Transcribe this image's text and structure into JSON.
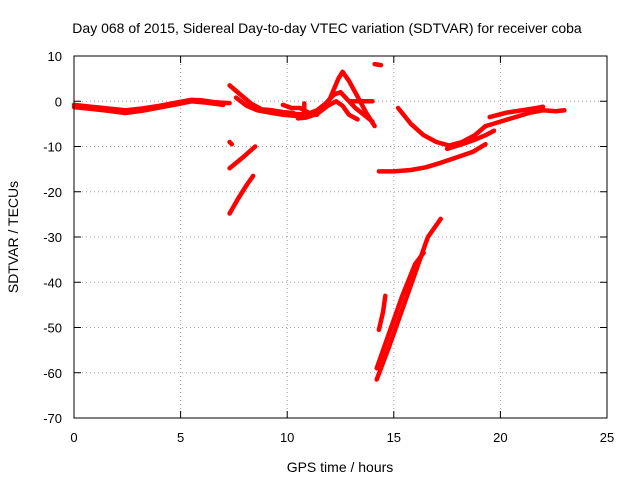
{
  "chart_data": {
    "type": "scatter",
    "title": "Day 068 of 2015, Sidereal Day-to-day VTEC variation (SDTVAR) for receiver coba",
    "xlabel": "GPS time / hours",
    "ylabel": "SDTVAR / TECUs",
    "xlim": [
      0,
      25
    ],
    "ylim": [
      -70,
      10
    ],
    "xticks": [
      0,
      5,
      10,
      15,
      20,
      25
    ],
    "yticks": [
      10,
      0,
      -10,
      -20,
      -30,
      -40,
      -50,
      -60,
      -70
    ],
    "grid": true,
    "marker_color": "#ff0000",
    "series": [
      {
        "values": [
          [
            0.0,
            -0.8
          ],
          [
            0.8,
            -1.2
          ],
          [
            1.6,
            -1.6
          ],
          [
            2.4,
            -2.0
          ],
          [
            3.2,
            -1.6
          ],
          [
            4.0,
            -1.0
          ],
          [
            4.8,
            -0.3
          ],
          [
            5.5,
            0.3
          ],
          [
            6.0,
            0.2
          ],
          [
            6.6,
            -0.2
          ],
          [
            7.3,
            -0.4
          ]
        ]
      },
      {
        "values": [
          [
            0.0,
            -1.3
          ],
          [
            0.8,
            -1.7
          ],
          [
            1.6,
            -2.1
          ],
          [
            2.4,
            -2.6
          ],
          [
            3.2,
            -2.1
          ],
          [
            4.0,
            -1.4
          ],
          [
            4.8,
            -0.7
          ],
          [
            5.5,
            0.0
          ],
          [
            6.2,
            -0.3
          ],
          [
            7.0,
            -0.8
          ]
        ]
      },
      {
        "values": [
          [
            7.3,
            3.5
          ],
          [
            7.8,
            1.5
          ],
          [
            8.3,
            -0.5
          ],
          [
            8.8,
            -1.8
          ],
          [
            9.3,
            -2.0
          ],
          [
            9.8,
            -2.4
          ],
          [
            10.3,
            -2.6
          ]
        ]
      },
      {
        "values": [
          [
            7.6,
            0.8
          ],
          [
            8.1,
            -1.0
          ],
          [
            8.6,
            -2.0
          ],
          [
            9.2,
            -2.5
          ],
          [
            9.8,
            -3.0
          ],
          [
            10.6,
            -3.3
          ],
          [
            11.1,
            -3.0
          ],
          [
            11.6,
            -2.0
          ],
          [
            12.0,
            0.5
          ],
          [
            12.4,
            5.0
          ],
          [
            12.6,
            6.5
          ],
          [
            12.9,
            4.5
          ],
          [
            13.3,
            1.0
          ],
          [
            13.7,
            -2.5
          ],
          [
            14.1,
            -5.5
          ]
        ]
      },
      {
        "values": [
          [
            8.5,
            -1.8
          ],
          [
            9.3,
            -2.3
          ],
          [
            10.1,
            -2.8
          ],
          [
            10.9,
            -2.9
          ],
          [
            11.4,
            -2.0
          ],
          [
            11.8,
            -0.5
          ],
          [
            12.2,
            1.5
          ],
          [
            12.5,
            2.0
          ],
          [
            12.8,
            0.5
          ],
          [
            13.2,
            -1.5
          ],
          [
            13.6,
            -3.0
          ],
          [
            14.0,
            -4.5
          ]
        ]
      },
      {
        "values": [
          [
            10.5,
            -3.8
          ],
          [
            10.9,
            -3.6
          ],
          [
            11.4,
            -2.8
          ],
          [
            11.9,
            -1.0
          ],
          [
            12.3,
            0.0
          ],
          [
            12.6,
            -1.0
          ],
          [
            12.9,
            -3.0
          ],
          [
            13.3,
            -4.0
          ]
        ]
      },
      {
        "values": [
          [
            9.8,
            -0.8
          ],
          [
            10.2,
            -1.5
          ],
          [
            10.6,
            -1.5
          ],
          [
            11.0,
            -2.5
          ],
          [
            11.4,
            -3.0
          ]
        ]
      },
      {
        "values": [
          [
            10.8,
            -0.5
          ],
          [
            10.8,
            -3.0
          ]
        ]
      },
      {
        "values": [
          [
            13.0,
            0.0
          ],
          [
            13.5,
            0.0
          ],
          [
            14.0,
            0.0
          ]
        ]
      },
      {
        "values": [
          [
            14.1,
            8.2
          ],
          [
            14.4,
            8.0
          ]
        ]
      },
      {
        "values": [
          [
            7.3,
            -9.0
          ],
          [
            7.4,
            -9.5
          ]
        ]
      },
      {
        "values": [
          [
            7.3,
            -14.8
          ],
          [
            7.9,
            -12.5
          ],
          [
            8.5,
            -10.0
          ]
        ]
      },
      {
        "values": [
          [
            7.3,
            -24.8
          ],
          [
            7.7,
            -21.5
          ],
          [
            8.1,
            -18.5
          ],
          [
            8.4,
            -16.5
          ]
        ]
      },
      {
        "values": [
          [
            14.3,
            -50.5
          ],
          [
            14.5,
            -46.5
          ],
          [
            14.6,
            -43.0
          ]
        ]
      },
      {
        "values": [
          [
            14.2,
            -61.5
          ],
          [
            14.8,
            -54.0
          ],
          [
            15.4,
            -46.0
          ],
          [
            16.0,
            -38.0
          ],
          [
            16.6,
            -30.0
          ],
          [
            17.2,
            -26.0
          ]
        ]
      },
      {
        "values": [
          [
            14.2,
            -59.0
          ],
          [
            14.8,
            -51.0
          ],
          [
            15.4,
            -43.0
          ],
          [
            16.0,
            -36.0
          ],
          [
            16.4,
            -33.5
          ]
        ]
      },
      {
        "values": [
          [
            14.3,
            -15.5
          ],
          [
            15.0,
            -15.5
          ],
          [
            15.8,
            -15.2
          ],
          [
            16.5,
            -14.6
          ],
          [
            17.2,
            -13.6
          ],
          [
            17.9,
            -12.5
          ],
          [
            18.7,
            -11.2
          ],
          [
            19.3,
            -9.5
          ]
        ]
      },
      {
        "values": [
          [
            15.2,
            -1.5
          ],
          [
            15.8,
            -5.0
          ],
          [
            16.4,
            -7.5
          ],
          [
            17.0,
            -9.0
          ],
          [
            17.6,
            -9.8
          ],
          [
            18.2,
            -9.0
          ],
          [
            18.8,
            -7.5
          ],
          [
            19.3,
            -5.5
          ]
        ]
      },
      {
        "values": [
          [
            17.5,
            -10.5
          ],
          [
            18.2,
            -9.5
          ],
          [
            18.8,
            -8.5
          ],
          [
            19.3,
            -7.5
          ],
          [
            19.7,
            -6.5
          ]
        ]
      },
      {
        "values": [
          [
            19.3,
            -5.5
          ],
          [
            20.0,
            -4.5
          ],
          [
            20.7,
            -3.5
          ],
          [
            21.4,
            -2.5
          ],
          [
            22.0,
            -2.0
          ],
          [
            22.6,
            -2.2
          ],
          [
            23.0,
            -2.0
          ]
        ]
      },
      {
        "values": [
          [
            19.5,
            -3.5
          ],
          [
            20.3,
            -2.5
          ],
          [
            21.0,
            -2.0
          ],
          [
            21.7,
            -1.5
          ],
          [
            22.0,
            -1.2
          ]
        ]
      }
    ]
  }
}
